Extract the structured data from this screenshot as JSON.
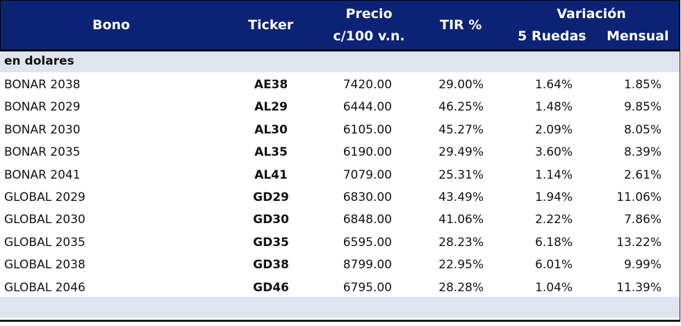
{
  "header": {
    "bono": "Bono",
    "ticker": "Ticker",
    "precio_line1": "Precio",
    "precio_line2": "c/100 v.n.",
    "tir": "TIR %",
    "variacion": "Variación",
    "ruedas": "5 Ruedas",
    "mensual": "Mensual"
  },
  "section_label": "en dolares",
  "rows": [
    {
      "bono": "BONAR 2038",
      "ticker": "AE38",
      "precio": "7420.00",
      "tir": "29.00%",
      "ruedas": "1.64%",
      "mensual": "1.85%"
    },
    {
      "bono": "BONAR 2029",
      "ticker": "AL29",
      "precio": "6444.00",
      "tir": "46.25%",
      "ruedas": "1.48%",
      "mensual": "9.85%"
    },
    {
      "bono": "BONAR 2030",
      "ticker": "AL30",
      "precio": "6105.00",
      "tir": "45.27%",
      "ruedas": "2.09%",
      "mensual": "8.05%"
    },
    {
      "bono": "BONAR 2035",
      "ticker": "AL35",
      "precio": "6190.00",
      "tir": "29.49%",
      "ruedas": "3.60%",
      "mensual": "8.39%"
    },
    {
      "bono": "BONAR 2041",
      "ticker": "AL41",
      "precio": "7079.00",
      "tir": "25.31%",
      "ruedas": "1.14%",
      "mensual": "2.61%"
    },
    {
      "bono": "GLOBAL 2029",
      "ticker": "GD29",
      "precio": "6830.00",
      "tir": "43.49%",
      "ruedas": "1.94%",
      "mensual": "11.06%"
    },
    {
      "bono": "GLOBAL 2030",
      "ticker": "GD30",
      "precio": "6848.00",
      "tir": "41.06%",
      "ruedas": "2.22%",
      "mensual": "7.86%"
    },
    {
      "bono": "GLOBAL 2035",
      "ticker": "GD35",
      "precio": "6595.00",
      "tir": "28.23%",
      "ruedas": "6.18%",
      "mensual": "13.22%"
    },
    {
      "bono": "GLOBAL 2038",
      "ticker": "GD38",
      "precio": "8799.00",
      "tir": "22.95%",
      "ruedas": "6.01%",
      "mensual": "9.99%"
    },
    {
      "bono": "GLOBAL 2046",
      "ticker": "GD46",
      "precio": "6795.00",
      "tir": "28.28%",
      "ruedas": "1.04%",
      "mensual": "11.39%"
    }
  ]
}
